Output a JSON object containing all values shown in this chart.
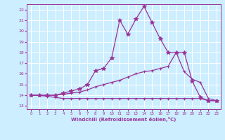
{
  "xlabel": "Windchill (Refroidissement éolien,°C)",
  "bg_color": "#cceeff",
  "grid_color": "#ffffff",
  "line_color": "#993399",
  "x_ticks": [
    0,
    1,
    2,
    3,
    4,
    5,
    6,
    7,
    8,
    9,
    10,
    11,
    12,
    13,
    14,
    15,
    16,
    17,
    18,
    19,
    20,
    21,
    22,
    23
  ],
  "y_ticks": [
    13,
    14,
    15,
    16,
    17,
    18,
    19,
    20,
    21,
    22
  ],
  "ylim": [
    12.7,
    22.5
  ],
  "xlim": [
    -0.5,
    23.5
  ],
  "line1_x": [
    0,
    1,
    2,
    3,
    4,
    5,
    6,
    7,
    8,
    9,
    10,
    11,
    12,
    13,
    14,
    15,
    16,
    17,
    18,
    19,
    20,
    21,
    22,
    23
  ],
  "line1_y": [
    14.0,
    14.0,
    13.9,
    13.8,
    13.7,
    13.7,
    13.7,
    13.7,
    13.7,
    13.7,
    13.7,
    13.7,
    13.7,
    13.7,
    13.7,
    13.7,
    13.7,
    13.7,
    13.7,
    13.7,
    13.7,
    13.7,
    13.5,
    13.5
  ],
  "line2_x": [
    0,
    1,
    2,
    3,
    4,
    5,
    6,
    7,
    8,
    9,
    10,
    11,
    12,
    13,
    14,
    15,
    16,
    17,
    18,
    19,
    20,
    21,
    22,
    23
  ],
  "line2_y": [
    14.0,
    14.0,
    14.0,
    14.0,
    14.1,
    14.2,
    14.3,
    14.5,
    14.8,
    15.0,
    15.2,
    15.4,
    15.7,
    16.0,
    16.2,
    16.3,
    16.5,
    16.7,
    18.0,
    16.2,
    15.5,
    15.2,
    13.7,
    13.5
  ],
  "line3_x": [
    0,
    1,
    2,
    3,
    4,
    5,
    6,
    7,
    8,
    9,
    10,
    11,
    12,
    13,
    14,
    15,
    16,
    17,
    18,
    19,
    20,
    21,
    22,
    23
  ],
  "line3_y": [
    14.0,
    14.0,
    14.0,
    14.0,
    14.2,
    14.4,
    14.6,
    15.0,
    16.3,
    16.5,
    17.5,
    21.0,
    19.7,
    21.1,
    22.3,
    20.8,
    19.3,
    18.0,
    18.0,
    18.0,
    15.3,
    13.8,
    13.5,
    13.5
  ],
  "marker1": "+",
  "marker2": "+",
  "marker3": "*"
}
